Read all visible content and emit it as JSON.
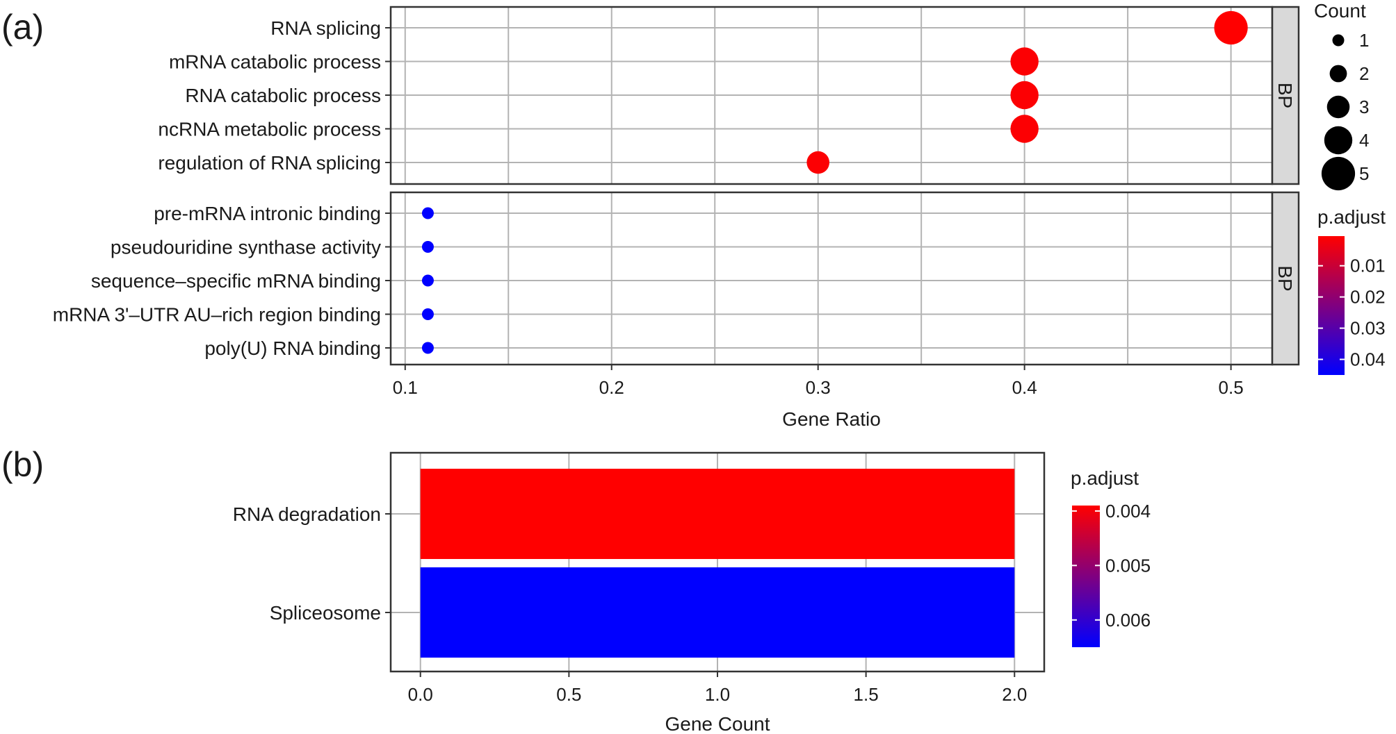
{
  "panels": {
    "a": {
      "letter": "(a)"
    },
    "b": {
      "letter": "(b)"
    }
  },
  "chart_data": [
    {
      "type": "scatter",
      "subtype": "dot-plot",
      "xlabel": "Gene Ratio",
      "xlim": [
        0.093,
        0.52
      ],
      "xticks": [
        0.1,
        0.2,
        0.3,
        0.4,
        0.5
      ],
      "xtick_labels": [
        "0.1",
        "0.2",
        "0.3",
        "0.4",
        "0.5"
      ],
      "minor_gridlines": [
        0.15,
        0.25,
        0.35,
        0.45
      ],
      "grid": true,
      "facets": [
        {
          "strip": "BP",
          "terms": [
            {
              "label": "RNA splicing",
              "gene_ratio": 0.5,
              "count": 5,
              "p_adjust": 0.0005
            },
            {
              "label": "mRNA catabolic process",
              "gene_ratio": 0.4,
              "count": 4,
              "p_adjust": 0.001
            },
            {
              "label": "RNA catabolic process",
              "gene_ratio": 0.4,
              "count": 4,
              "p_adjust": 0.001
            },
            {
              "label": "ncRNA metabolic process",
              "gene_ratio": 0.4,
              "count": 4,
              "p_adjust": 0.001
            },
            {
              "label": "regulation of RNA splicing",
              "gene_ratio": 0.3,
              "count": 3,
              "p_adjust": 0.001
            }
          ]
        },
        {
          "strip": "BP",
          "terms": [
            {
              "label": "pre-mRNA intronic binding",
              "gene_ratio": 0.111,
              "count": 1,
              "p_adjust": 0.045
            },
            {
              "label": "pseudouridine synthase activity",
              "gene_ratio": 0.111,
              "count": 1,
              "p_adjust": 0.045
            },
            {
              "label": "sequence–specific mRNA binding",
              "gene_ratio": 0.111,
              "count": 1,
              "p_adjust": 0.045
            },
            {
              "label": "mRNA 3'–UTR AU–rich region binding",
              "gene_ratio": 0.111,
              "count": 1,
              "p_adjust": 0.045
            },
            {
              "label": "poly(U) RNA binding",
              "gene_ratio": 0.111,
              "count": 1,
              "p_adjust": 0.045
            }
          ]
        }
      ],
      "size_legend": {
        "title": "Count",
        "entries": [
          {
            "label": "1",
            "value": 1
          },
          {
            "label": "2",
            "value": 2
          },
          {
            "label": "3",
            "value": 3
          },
          {
            "label": "4",
            "value": 4
          },
          {
            "label": "5",
            "value": 5
          }
        ]
      },
      "color_legend": {
        "title": "p.adjust",
        "domain": [
          0.0005,
          0.045
        ],
        "ticks": [
          {
            "label": "0.01",
            "value": 0.01
          },
          {
            "label": "0.02",
            "value": 0.02
          },
          {
            "label": "0.03",
            "value": 0.03
          },
          {
            "label": "0.04",
            "value": 0.04
          }
        ],
        "low_color": "#ff0000",
        "high_color": "#0000ff"
      },
      "legend_position": "right"
    },
    {
      "type": "bar",
      "orientation": "horizontal",
      "xlabel": "Gene Count",
      "xlim": [
        -0.1,
        2.1
      ],
      "xticks": [
        0,
        0.5,
        1,
        1.5,
        2
      ],
      "xtick_labels": [
        "0.0",
        "0.5",
        "1.0",
        "1.5",
        "2.0"
      ],
      "grid": true,
      "bars": [
        {
          "label": "RNA degradation",
          "value": 2,
          "p_adjust": 0.0039
        },
        {
          "label": "Spliceosome",
          "value": 2,
          "p_adjust": 0.0065
        }
      ],
      "color_legend": {
        "title": "p.adjust",
        "domain": [
          0.0039,
          0.0065
        ],
        "ticks": [
          {
            "label": "0.004",
            "value": 0.004
          },
          {
            "label": "0.005",
            "value": 0.005
          },
          {
            "label": "0.006",
            "value": 0.006
          }
        ],
        "low_color": "#ff0000",
        "high_color": "#0000ff"
      },
      "legend_position": "right"
    }
  ]
}
